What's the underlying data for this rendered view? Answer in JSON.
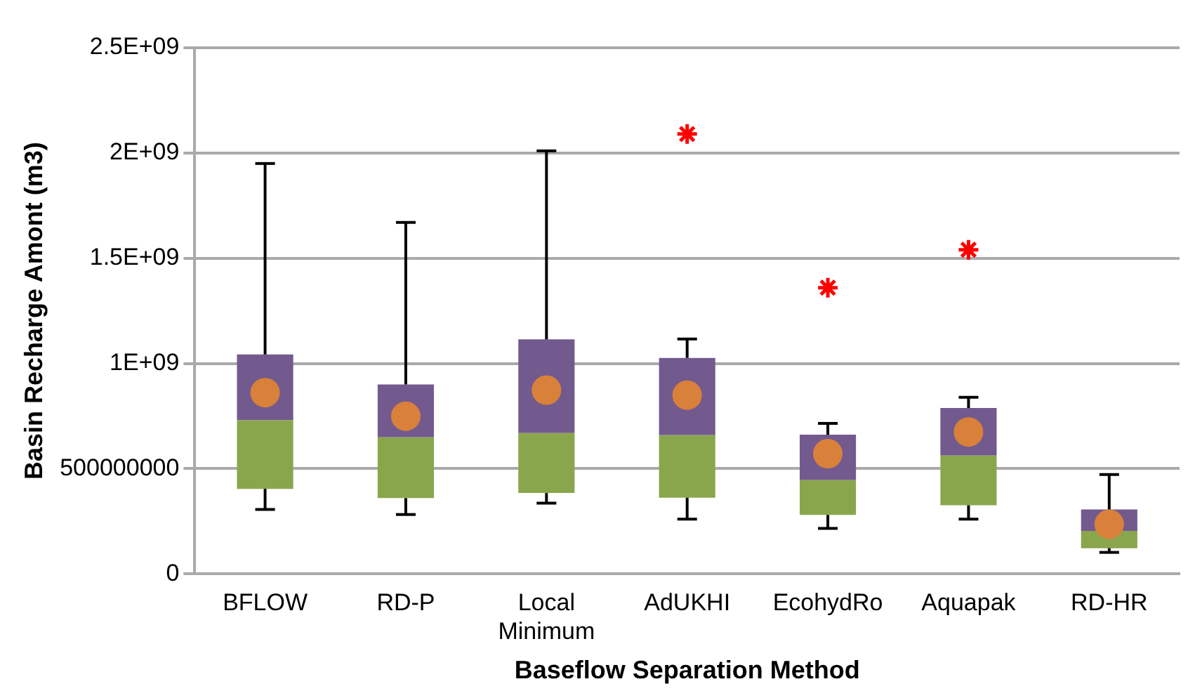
{
  "chart_data": {
    "type": "box",
    "xlabel": "Baseflow Separation Method",
    "ylabel": "Basin Recharge Amont (m3)",
    "categories": [
      "BFLOW",
      "RD-P",
      "Local Minimum",
      "AdUKHI",
      "EcohydRo",
      "Aquapak",
      "RD-HR"
    ],
    "series": [
      {
        "color": "#725a8e",
        "colors": [
          "#8aa64c",
          "#8aa64c",
          "#8aa64c",
          "#8aa64c",
          "#8aa64c",
          "#8aa64c",
          "#8aa64c"
        ],
        "boxes": [
          {
            "low": 306000000,
            "q1": 404000000,
            "median": 730000000,
            "q3": 1043000000,
            "high": 1950000000
          },
          {
            "low": 282000000,
            "q1": 360000000,
            "median": 649000000,
            "q3": 900000000,
            "high": 1670000000
          },
          {
            "low": 336000000,
            "q1": 384000000,
            "median": 669000000,
            "q3": 1114000000,
            "high": 2010000000
          },
          {
            "low": 260000000,
            "q1": 362000000,
            "median": 659000000,
            "q3": 1026000000,
            "high": 1116000000
          },
          {
            "low": 216000000,
            "q1": 280000000,
            "median": 445000000,
            "q3": 661000000,
            "high": 715000000
          },
          {
            "low": 260000000,
            "q1": 326000000,
            "median": 562000000,
            "q3": 788000000,
            "high": 839000000
          },
          {
            "low": 102000000,
            "q1": 122000000,
            "median": 204000000,
            "q3": 306000000,
            "high": 472000000
          }
        ]
      },
      {
        "type": "scatter",
        "color": "#d9803a",
        "marker": "circle",
        "x": [
          "BFLOW",
          "RD-P",
          "Local Minimum",
          "AdUKHI",
          "EcohydRo",
          "Aquapak",
          "RD-HR"
        ],
        "values": [
          861000000,
          749000000,
          873000000,
          849000000,
          571000000,
          674000000,
          236000000
        ]
      },
      {
        "type": "scatter",
        "color": "#ff0000",
        "marker": "cross",
        "x": [
          "AdUKHI",
          "EcohydRo",
          "Aquapak"
        ],
        "values": [
          2090000000,
          1360000000,
          1540000000
        ]
      }
    ],
    "ylim": [
      0,
      2500000000
    ],
    "yticks": [
      0,
      500000000,
      {
        "value": 1000000000,
        "label": "1E+09"
      },
      {
        "value": 1500000000,
        "label": "1.5E+09"
      },
      {
        "value": 2000000000,
        "label": "2E+09"
      },
      {
        "value": 2500000000,
        "label": "2.5E+09"
      }
    ],
    "grid": "y",
    "legend": false
  }
}
